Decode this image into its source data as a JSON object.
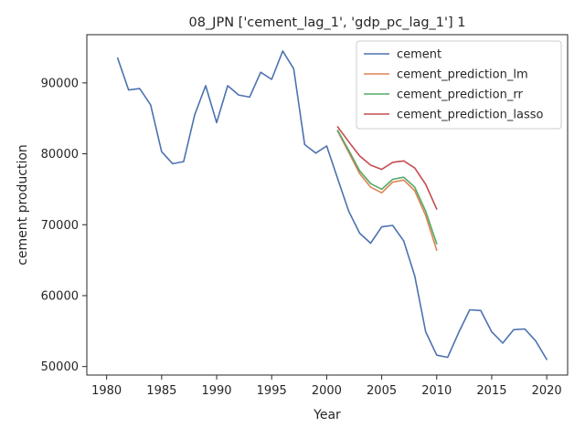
{
  "chart_data": {
    "type": "line",
    "title": "08_JPN ['cement_lag_1', 'gdp_pc_lag_1'] 1",
    "xlabel": "Year",
    "ylabel": "cement production",
    "xlim": [
      1978.2,
      2021.9
    ],
    "ylim": [
      48800,
      96800
    ],
    "xticks": [
      1980,
      1985,
      1990,
      1995,
      2000,
      2005,
      2010,
      2015,
      2020
    ],
    "yticks": [
      50000,
      60000,
      70000,
      80000,
      90000
    ],
    "grid": false,
    "legend": "top-right",
    "series": [
      {
        "name": "cement",
        "color": "#4c72b0",
        "x": [
          1981,
          1982,
          1983,
          1984,
          1985,
          1986,
          1987,
          1988,
          1989,
          1990,
          1991,
          1992,
          1993,
          1994,
          1995,
          1996,
          1997,
          1998,
          1999,
          2000,
          2001,
          2002,
          2003,
          2004,
          2005,
          2006,
          2007,
          2008,
          2009,
          2010,
          2011,
          2012,
          2013,
          2014,
          2015,
          2016,
          2017,
          2018,
          2019,
          2020
        ],
        "y": [
          93500,
          89000,
          89200,
          86900,
          80300,
          78600,
          78900,
          85500,
          89600,
          84400,
          89600,
          88300,
          88000,
          91500,
          90500,
          94500,
          92000,
          81300,
          80100,
          81100,
          76500,
          71900,
          68800,
          67400,
          69700,
          69900,
          67700,
          62800,
          54900,
          51600,
          51300,
          54800,
          58000,
          57900,
          54900,
          53300,
          55200,
          55300,
          53600,
          51000
        ]
      },
      {
        "name": "cement_prediction_lm",
        "color": "#dd8452",
        "x": [
          2001,
          2002,
          2003,
          2004,
          2005,
          2006,
          2007,
          2008,
          2009,
          2010
        ],
        "y": [
          83200,
          80200,
          77200,
          75300,
          74500,
          76000,
          76300,
          74800,
          71300,
          66400
        ]
      },
      {
        "name": "cement_prediction_rr",
        "color": "#55a868",
        "x": [
          2001,
          2002,
          2003,
          2004,
          2005,
          2006,
          2007,
          2008,
          2009,
          2010
        ],
        "y": [
          83300,
          80500,
          77600,
          75800,
          75000,
          76400,
          76700,
          75300,
          71900,
          67300
        ]
      },
      {
        "name": "cement_prediction_lasso",
        "color": "#c44e52",
        "x": [
          2001,
          2002,
          2003,
          2004,
          2005,
          2006,
          2007,
          2008,
          2009,
          2010
        ],
        "y": [
          83800,
          81700,
          79700,
          78400,
          77800,
          78800,
          79000,
          78000,
          75700,
          72200
        ]
      }
    ]
  }
}
